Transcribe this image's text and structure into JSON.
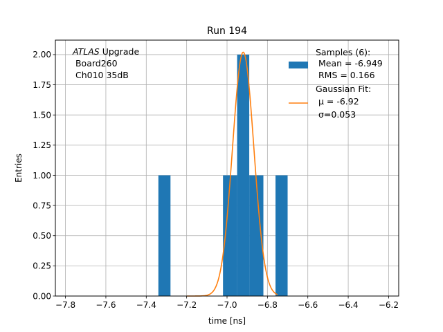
{
  "chart_data": {
    "type": "bar",
    "title": "Run 194",
    "xlabel": "time [ns]",
    "ylabel": "Entries",
    "xlim": [
      -7.85,
      -6.15
    ],
    "ylim": [
      0,
      2.12
    ],
    "grid": true,
    "x_ticks": [
      -7.8,
      -7.6,
      -7.4,
      -7.2,
      -7.0,
      -6.8,
      -6.6,
      -6.4,
      -6.2
    ],
    "x_tick_labels": [
      "−7.8",
      "−7.6",
      "−7.4",
      "−7.2",
      "−7.0",
      "−6.8",
      "−6.6",
      "−6.4",
      "−6.2"
    ],
    "y_ticks": [
      0,
      0.25,
      0.5,
      0.75,
      1.0,
      1.25,
      1.5,
      1.75,
      2.0
    ],
    "y_tick_labels": [
      "0.00",
      "0.25",
      "0.50",
      "0.75",
      "1.00",
      "1.25",
      "1.50",
      "1.75",
      "2.00"
    ],
    "histogram": {
      "color": "#1f77b4",
      "bins": [
        {
          "x0": -7.34,
          "x1": -7.28,
          "count": 1
        },
        {
          "x0": -7.02,
          "x1": -6.95,
          "count": 1
        },
        {
          "x0": -6.95,
          "x1": -6.89,
          "count": 2
        },
        {
          "x0": -6.89,
          "x1": -6.82,
          "count": 1
        },
        {
          "x0": -6.76,
          "x1": -6.7,
          "count": 1
        }
      ]
    },
    "gaussian_fit": {
      "color": "#ff7f0e",
      "mu": -6.92,
      "sigma": 0.053,
      "amplitude": 2.02,
      "x_range": [
        -7.2,
        -6.75
      ]
    },
    "legend": {
      "placement": "top-right",
      "samples_lines": [
        "Samples (6):",
        " Mean = -6.949",
        " RMS = 0.166"
      ],
      "fit_lines": [
        "Gaussian Fit:",
        " μ = -6.92",
        " σ=0.053"
      ]
    },
    "annotation": {
      "placement": "top-left",
      "atlas": "ATLAS",
      "upgrade": " Upgrade",
      "lines": [
        " Board260",
        " Ch010 35dB"
      ]
    }
  }
}
